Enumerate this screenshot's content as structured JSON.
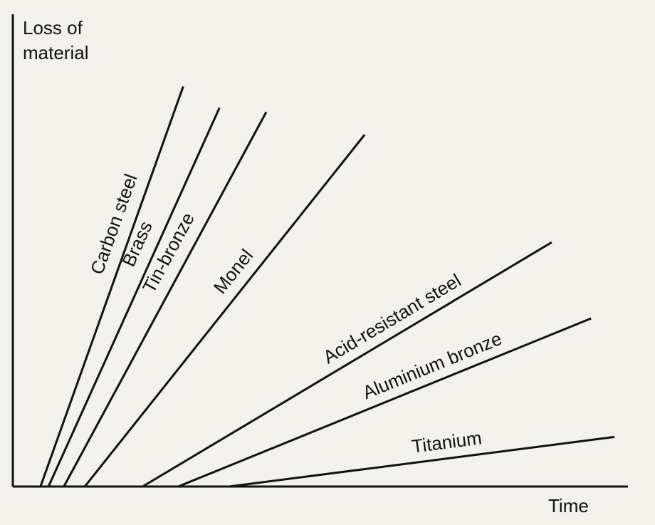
{
  "chart_data": {
    "type": "line",
    "ylabel": [
      "Loss of",
      "material"
    ],
    "xlabel": "Time",
    "xlim": [
      0,
      100
    ],
    "ylim": [
      0,
      100
    ],
    "grid": false,
    "legend": "none",
    "series": [
      {
        "name": "Carbon steel",
        "x": [
          4.5,
          27.7
        ],
        "y": [
          0,
          84.7
        ]
      },
      {
        "name": "Brass",
        "x": [
          5.8,
          33.6
        ],
        "y": [
          0,
          80.2
        ]
      },
      {
        "name": "Tin-bronze",
        "x": [
          8.3,
          41.2
        ],
        "y": [
          0,
          79.3
        ]
      },
      {
        "name": "Monel",
        "x": [
          11.7,
          57.2
        ],
        "y": [
          0,
          74.5
        ]
      },
      {
        "name": "Acid-resistant steel",
        "x": [
          21.1,
          87.6
        ],
        "y": [
          0,
          51.7
        ]
      },
      {
        "name": "Aluminium bronze",
        "x": [
          26.9,
          94.0
        ],
        "y": [
          0,
          35.6
        ]
      },
      {
        "name": "Titanium",
        "x": [
          35.2,
          97.8
        ],
        "y": [
          0,
          10.5
        ]
      }
    ]
  }
}
